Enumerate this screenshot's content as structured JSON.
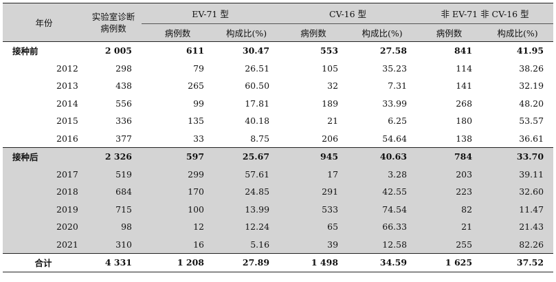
{
  "headers": {
    "year": "年份",
    "diagnosed_line1": "实验室诊断",
    "diagnosed_line2": "病例数",
    "groups": [
      "EV-71 型",
      "CV-16 型",
      "非 EV-71 非 CV-16 型"
    ],
    "sub_cases": "病例数",
    "sub_ratio": "构成比(%)"
  },
  "sections": [
    {
      "label": "接种前",
      "shaded": false,
      "total": [
        "2 005",
        "611",
        "30.47",
        "553",
        "27.58",
        "841",
        "41.95"
      ],
      "rows": [
        {
          "year": "2012",
          "cells": [
            "298",
            "79",
            "26.51",
            "105",
            "35.23",
            "114",
            "38.26"
          ]
        },
        {
          "year": "2013",
          "cells": [
            "438",
            "265",
            "60.50",
            "32",
            "7.31",
            "141",
            "32.19"
          ]
        },
        {
          "year": "2014",
          "cells": [
            "556",
            "99",
            "17.81",
            "189",
            "33.99",
            "268",
            "48.20"
          ]
        },
        {
          "year": "2015",
          "cells": [
            "336",
            "135",
            "40.18",
            "21",
            "6.25",
            "180",
            "53.57"
          ]
        },
        {
          "year": "2016",
          "cells": [
            "377",
            "33",
            "8.75",
            "206",
            "54.64",
            "138",
            "36.61"
          ]
        }
      ]
    },
    {
      "label": "接种后",
      "shaded": true,
      "total": [
        "2 326",
        "597",
        "25.67",
        "945",
        "40.63",
        "784",
        "33.70"
      ],
      "rows": [
        {
          "year": "2017",
          "cells": [
            "519",
            "299",
            "57.61",
            "17",
            "3.28",
            "203",
            "39.11"
          ]
        },
        {
          "year": "2018",
          "cells": [
            "684",
            "170",
            "24.85",
            "291",
            "42.55",
            "223",
            "32.60"
          ]
        },
        {
          "year": "2019",
          "cells": [
            "715",
            "100",
            "13.99",
            "533",
            "74.54",
            "82",
            "11.47"
          ]
        },
        {
          "year": "2020",
          "cells": [
            "98",
            "12",
            "12.24",
            "65",
            "66.33",
            "21",
            "21.43"
          ]
        },
        {
          "year": "2021",
          "cells": [
            "310",
            "16",
            "5.16",
            "39",
            "12.58",
            "255",
            "82.26"
          ]
        }
      ]
    }
  ],
  "summary": {
    "label": "合计",
    "cells": [
      "4 331",
      "1 208",
      "27.89",
      "1 498",
      "34.59",
      "1 625",
      "37.52"
    ]
  }
}
